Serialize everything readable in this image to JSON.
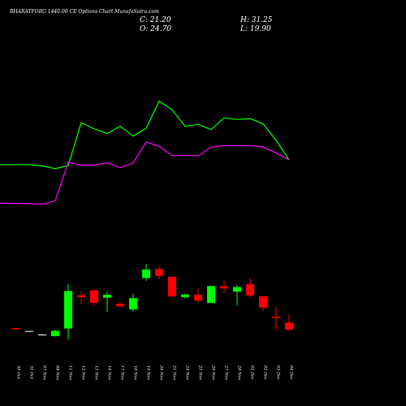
{
  "header": {
    "title": "BHARATFORG 1440.00 CE Options Chart MunafaSutra.com",
    "close_text": "C: 21.20",
    "high_text": "H: 31.25",
    "open_text": "O: 24.70",
    "low_text": "L: 19.90"
  },
  "colors": {
    "background": "#000000",
    "up": "#00ff00",
    "down": "#ff0000",
    "doji": "#ffffff",
    "upper_band": "#00ff00",
    "lower_band": "#ff00ff",
    "text": "#ffffff"
  },
  "chart_data": {
    "type": "candlestick",
    "title": "BHARATFORG 1440.00 CE Options Chart MunafaSutra.com",
    "x": [
      "30 Oct",
      "31 Oct",
      "07 Nov",
      "08 Nov",
      "11 Nov",
      "12 Nov",
      "13 Nov",
      "14 Nov",
      "17 Nov",
      "18 Nov",
      "19 Nov",
      "20 Nov",
      "21 Nov",
      "24 Nov",
      "25 Nov",
      "26 Nov",
      "27 Nov",
      "28 Nov",
      "01 Dec",
      "02 Dec",
      "03 Dec",
      "04 Dec"
    ],
    "candles": [
      {
        "o": 32.6,
        "h": 32.6,
        "l": 31.8,
        "c": 31.8
      },
      {
        "o": 30.8,
        "h": 30.8,
        "l": 30.6,
        "c": 30.6
      },
      {
        "o": 28.7,
        "h": 28.7,
        "l": 28.5,
        "c": 28.5
      },
      {
        "o": 27.7,
        "h": 31.4,
        "l": 27.4,
        "c": 30.9
      },
      {
        "o": 32.3,
        "h": 59.0,
        "l": 25.6,
        "c": 54.8
      },
      {
        "o": 52.3,
        "h": 54.6,
        "l": 47.3,
        "c": 51.1
      },
      {
        "o": 55.2,
        "h": 56.0,
        "l": 46.0,
        "c": 47.7
      },
      {
        "o": 50.8,
        "h": 54.3,
        "l": 42.4,
        "c": 52.5
      },
      {
        "o": 47.1,
        "h": 48.3,
        "l": 45.1,
        "c": 45.6
      },
      {
        "o": 43.7,
        "h": 53.2,
        "l": 42.7,
        "c": 50.5
      },
      {
        "o": 62.6,
        "h": 71.0,
        "l": 61.0,
        "c": 67.7
      },
      {
        "o": 68.0,
        "h": 69.7,
        "l": 62.0,
        "c": 63.9
      },
      {
        "o": 63.4,
        "h": 63.4,
        "l": 51.4,
        "c": 51.5
      },
      {
        "o": 51.1,
        "h": 53.1,
        "l": 50.4,
        "c": 52.7
      },
      {
        "o": 52.5,
        "h": 56.3,
        "l": 47.9,
        "c": 49.1
      },
      {
        "o": 47.6,
        "h": 58.0,
        "l": 47.6,
        "c": 57.8
      },
      {
        "o": 57.7,
        "h": 60.8,
        "l": 53.6,
        "c": 56.4
      },
      {
        "o": 54.4,
        "h": 58.4,
        "l": 46.2,
        "c": 57.2
      },
      {
        "o": 59.0,
        "h": 62.4,
        "l": 50.8,
        "c": 52.2
      },
      {
        "o": 51.7,
        "h": 51.8,
        "l": 42.6,
        "c": 44.8
      },
      {
        "o": 39.3,
        "h": 45.2,
        "l": 31.2,
        "c": 38.6
      },
      {
        "o": 35.9,
        "h": 40.9,
        "l": 30.8,
        "c": 31.6
      }
    ],
    "upper_band": [
      130.7,
      130.7,
      130.0,
      128.3,
      130.2,
      155.9,
      152.2,
      149.4,
      153.8,
      147.9,
      152.6,
      168.9,
      163.7,
      153.7,
      154.9,
      151.8,
      158.8,
      157.9,
      158.4,
      155.3,
      145.3,
      133.6
    ],
    "lower_band": [
      107.5,
      107.3,
      107.0,
      109.0,
      132.1,
      130.4,
      130.4,
      131.9,
      128.9,
      131.8,
      144.3,
      141.8,
      136.1,
      136.3,
      136.0,
      141.3,
      142.1,
      142.1,
      142.1,
      141.4,
      137.7,
      133.6
    ],
    "ylim": [
      15,
      200
    ]
  }
}
